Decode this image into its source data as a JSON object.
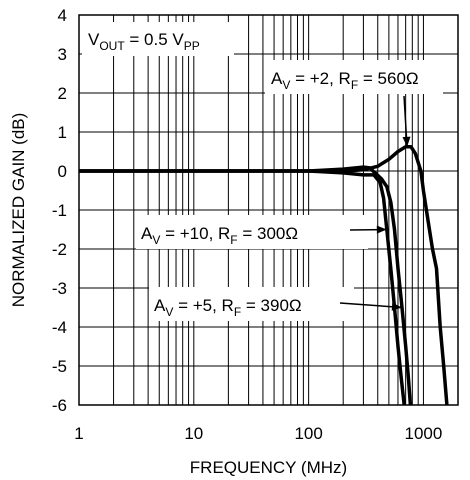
{
  "chart_data": {
    "type": "line",
    "xlabel": "FREQUENCY (MHz)",
    "ylabel": "NORMALIZED GAIN (dB)",
    "xscale": "log",
    "xlim": [
      1,
      2000
    ],
    "ylim": [
      -6,
      4
    ],
    "x_ticks": [
      "1",
      "10",
      "100",
      "1000"
    ],
    "y_ticks": [
      "4",
      "3",
      "2",
      "1",
      "0",
      "-1",
      "-2",
      "-3",
      "-4",
      "-5",
      "-6"
    ],
    "grid": true,
    "condition": {
      "main": "V",
      "sub": "OUT",
      "mid": " = 0.5 V",
      "sub2": "PP"
    },
    "series": [
      {
        "legend": {
          "prefix": "A",
          "sub": "V",
          "mid": " = +2, R",
          "sub2": "F",
          "suffix": " = 560Ω"
        },
        "points": [
          [
            1,
            0
          ],
          [
            100,
            0
          ],
          [
            200,
            0
          ],
          [
            300,
            0.03
          ],
          [
            400,
            0.12
          ],
          [
            500,
            0.3
          ],
          [
            600,
            0.5
          ],
          [
            700,
            0.62
          ],
          [
            780,
            0.62
          ],
          [
            850,
            0.45
          ],
          [
            950,
            0
          ],
          [
            1000,
            -0.5
          ],
          [
            1100,
            -1.3
          ],
          [
            1200,
            -2
          ],
          [
            1300,
            -2.5
          ],
          [
            1400,
            -4
          ],
          [
            1500,
            -5
          ],
          [
            1600,
            -6
          ]
        ]
      },
      {
        "legend": {
          "prefix": "A",
          "sub": "V",
          "mid": " = +10, R",
          "sub2": "F",
          "suffix": " = 300Ω"
        },
        "points": [
          [
            1,
            0
          ],
          [
            100,
            0
          ],
          [
            200,
            -0.05
          ],
          [
            300,
            -0.1
          ],
          [
            370,
            -0.1
          ],
          [
            420,
            -0.3
          ],
          [
            450,
            -0.7
          ],
          [
            480,
            -1.5
          ],
          [
            520,
            -2.5
          ],
          [
            560,
            -3.5
          ],
          [
            600,
            -4.5
          ],
          [
            640,
            -5.3
          ],
          [
            680,
            -6
          ]
        ]
      },
      {
        "legend": {
          "prefix": "A",
          "sub": "V",
          "mid": " = +5, R",
          "sub2": "F",
          "suffix": " = 390Ω"
        },
        "points": [
          [
            1,
            0
          ],
          [
            100,
            0
          ],
          [
            200,
            0.05
          ],
          [
            300,
            0.1
          ],
          [
            340,
            0.08
          ],
          [
            380,
            -0.05
          ],
          [
            430,
            -0.2
          ],
          [
            480,
            -0.4
          ],
          [
            520,
            -0.8
          ],
          [
            560,
            -1.5
          ],
          [
            600,
            -2.5
          ],
          [
            650,
            -3.5
          ],
          [
            700,
            -4.5
          ],
          [
            740,
            -5.3
          ],
          [
            770,
            -6
          ]
        ]
      }
    ]
  }
}
